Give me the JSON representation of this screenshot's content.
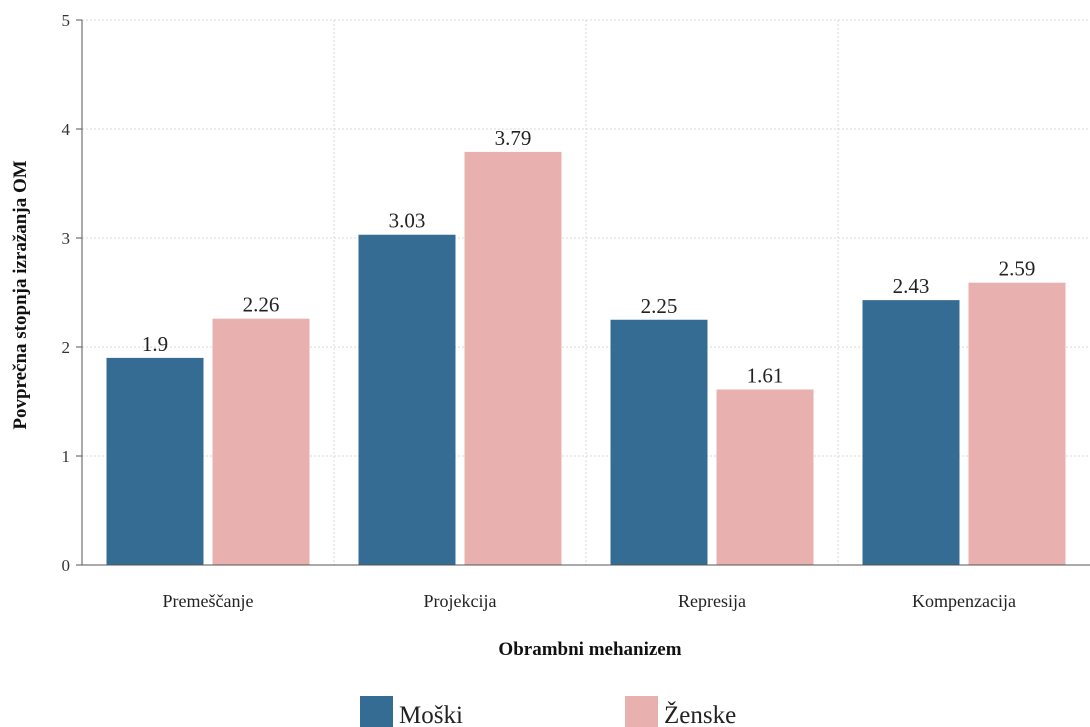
{
  "chart_data": {
    "type": "bar",
    "categories": [
      "Premeščanje",
      "Projekcija",
      "Represija",
      "Kompenzacija"
    ],
    "series": [
      {
        "name": "Moški",
        "values": [
          1.9,
          3.03,
          2.25,
          2.43
        ],
        "value_labels": [
          "1.9",
          "3.03",
          "2.25",
          "2.43"
        ],
        "color": "#356c93"
      },
      {
        "name": "Ženske",
        "values": [
          2.26,
          3.79,
          1.61,
          2.59
        ],
        "value_labels": [
          "2.26",
          "3.79",
          "1.61",
          "2.59"
        ],
        "color": "#e8b1b0"
      }
    ],
    "title": "",
    "xlabel": "Obrambni mehanizem",
    "ylabel": "Povprečna stopnja izražanja OM",
    "ylim": [
      0,
      5
    ],
    "yticks": [
      "0",
      "1",
      "2",
      "3",
      "4",
      "5"
    ],
    "grid": true,
    "legend_position": "bottom"
  }
}
